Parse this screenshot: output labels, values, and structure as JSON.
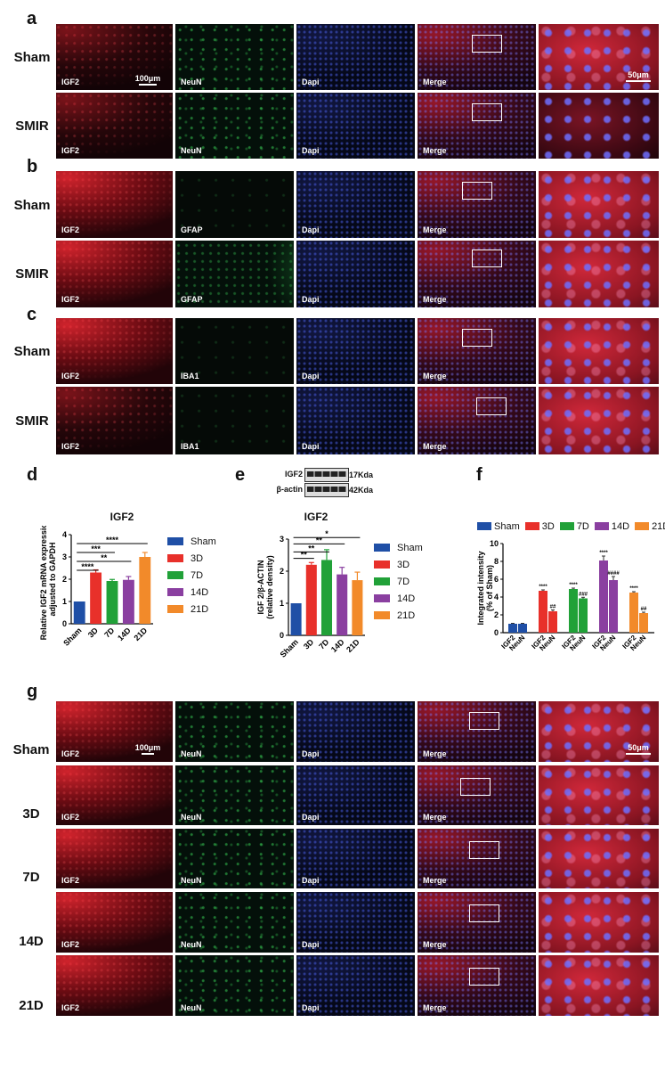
{
  "panel_labels": {
    "a": "a",
    "b": "b",
    "c": "c",
    "d": "d",
    "e": "e",
    "f": "f",
    "g": "g"
  },
  "channels": {
    "igf2": "IGF2",
    "neun": "NeuN",
    "gfap": "GFAP",
    "iba1": "IBA1",
    "dapi": "Dapi",
    "merge": "Merge"
  },
  "groups": {
    "sham": "Sham",
    "smir": "SMIR",
    "d3": "3D",
    "d7": "7D",
    "d14": "14D",
    "d21": "21D"
  },
  "scale_bars": {
    "low": "100μm",
    "high": "50μm"
  },
  "blot": {
    "band1": "IGF2",
    "band2": "β-actin",
    "size1": "17Kda",
    "size2": "42Kda"
  },
  "colors": {
    "sham": "#1f4fa6",
    "d3": "#e8302a",
    "d7": "#21a138",
    "d14": "#8a3fa0",
    "d21": "#f28a2a"
  },
  "chart_data": [
    {
      "type": "bar",
      "title": "IGF2",
      "ylabel": "Relative IGF2 mRNA expression adjusted to GAPDH",
      "categories": [
        "Sham",
        "3D",
        "7D",
        "14D",
        "21D"
      ],
      "values": [
        1.0,
        2.3,
        1.92,
        1.97,
        3.0
      ],
      "errors": [
        0,
        0.12,
        0.07,
        0.15,
        0.2
      ],
      "ylim": [
        0,
        4
      ],
      "yticks": [
        "0",
        "1",
        "2",
        "3",
        "4"
      ],
      "significance": [
        "****",
        "***",
        "**",
        "****"
      ],
      "legend": [
        "Sham",
        "3D",
        "7D",
        "14D",
        "21D"
      ]
    },
    {
      "type": "bar",
      "title": "IGF2",
      "ylabel": "IGF 2/β-ACTIN (relative density)",
      "categories": [
        "Sham",
        "3D",
        "7D",
        "14D",
        "21D"
      ],
      "values": [
        1.0,
        2.2,
        2.35,
        1.9,
        1.72
      ],
      "errors": [
        0,
        0.07,
        0.32,
        0.22,
        0.25
      ],
      "ylim": [
        0,
        3
      ],
      "yticks": [
        "0",
        "1",
        "2",
        "3"
      ],
      "significance": [
        "**",
        "**",
        "**",
        "*"
      ],
      "legend": [
        "Sham",
        "3D",
        "7D",
        "14D",
        "21D"
      ]
    },
    {
      "type": "bar",
      "ylabel": "Integrated intensity (% of Sham)",
      "legend": [
        "Sham",
        "3D",
        "7D",
        "14D",
        "21D"
      ],
      "pairs": [
        {
          "group": "Sham",
          "labels": [
            "IGF2",
            "NeuN"
          ],
          "values": [
            1.0,
            1.0
          ],
          "errors": [
            0.05,
            0.05
          ],
          "marks": [
            "",
            ""
          ]
        },
        {
          "group": "3D",
          "labels": [
            "IGF2",
            "NeuN"
          ],
          "values": [
            4.7,
            2.4
          ],
          "errors": [
            0.1,
            0.15
          ],
          "marks": [
            "****",
            "##"
          ]
        },
        {
          "group": "7D",
          "labels": [
            "IGF2",
            "NeuN"
          ],
          "values": [
            4.9,
            3.85
          ],
          "errors": [
            0.1,
            0.12
          ],
          "marks": [
            "****",
            "###"
          ]
        },
        {
          "group": "14D",
          "labels": [
            "IGF2",
            "NeuN"
          ],
          "values": [
            8.1,
            5.9
          ],
          "errors": [
            0.5,
            0.4
          ],
          "marks": [
            "****",
            "####"
          ]
        },
        {
          "group": "21D",
          "labels": [
            "IGF2",
            "NeuN"
          ],
          "values": [
            4.5,
            2.2
          ],
          "errors": [
            0.1,
            0.1
          ],
          "marks": [
            "****",
            "##"
          ]
        }
      ],
      "ylim": [
        0,
        10
      ],
      "yticks": [
        "0",
        "2",
        "4",
        "6",
        "8",
        "10"
      ]
    }
  ]
}
